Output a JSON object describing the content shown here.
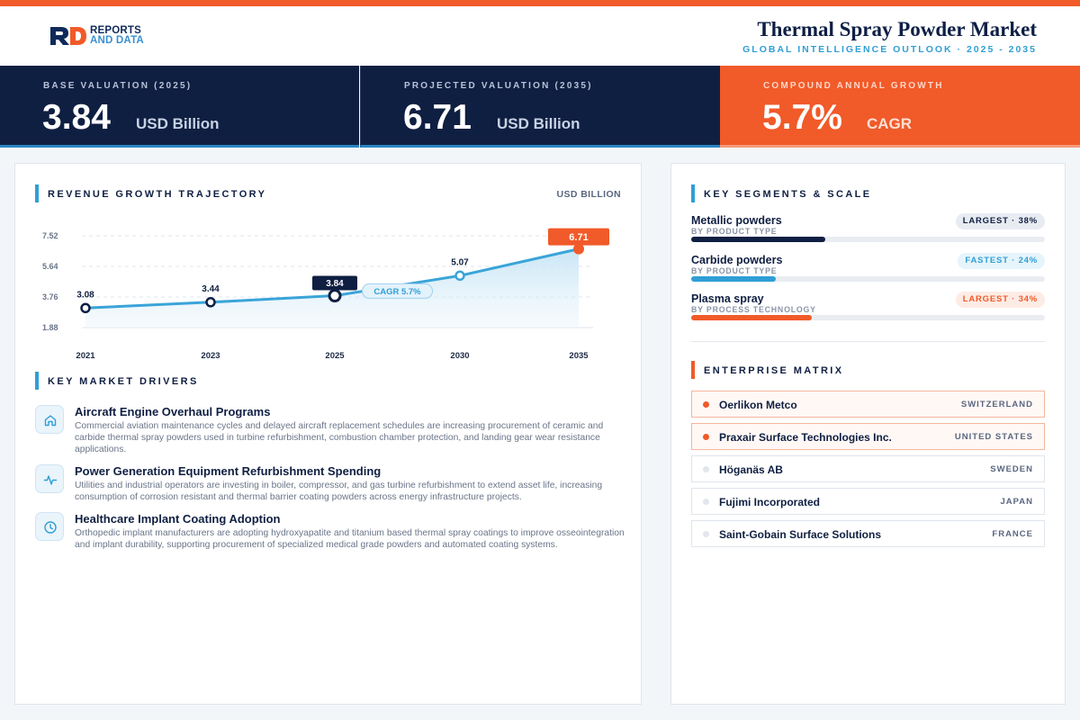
{
  "brand": {
    "logo_line1": "REPORTS",
    "logo_line2": "AND DATA",
    "accent": "#f15a29",
    "navy": "#0f1f42",
    "blue": "#2f9fd6"
  },
  "header": {
    "title": "Thermal Spray Powder Market",
    "subtitle": "GLOBAL INTELLIGENCE OUTLOOK · 2025 - 2035"
  },
  "kpis": [
    {
      "label": "BASE VALUATION (2025)",
      "value": "3.84",
      "unit": "USD Billion"
    },
    {
      "label": "PROJECTED VALUATION (2035)",
      "value": "6.71",
      "unit": "USD Billion"
    },
    {
      "label": "COMPOUND ANNUAL GROWTH",
      "value": "5.7%",
      "unit": "CAGR"
    }
  ],
  "revenue": {
    "title": "REVENUE GROWTH TRAJECTORY",
    "unit_label": "USD BILLION"
  },
  "chart_data": {
    "type": "line",
    "x": [
      "2021",
      "2023",
      "2025",
      "2030",
      "2035"
    ],
    "values": [
      3.08,
      3.44,
      3.84,
      5.07,
      6.71
    ],
    "labels": [
      "3.08",
      "3.44",
      "3.84",
      "5.07",
      "6.71"
    ],
    "y_ticks": [
      "7.52",
      "5.64",
      "3.76",
      "1.88"
    ],
    "y_tick_values": [
      7.52,
      5.64,
      3.76,
      1.88
    ],
    "ylim": [
      1.88,
      7.52
    ],
    "annotation": "CAGR 5.7%",
    "highlight_base_index": 2,
    "highlight_end_index": 4,
    "grid": true,
    "area_fill": true
  },
  "drivers": {
    "title": "KEY MARKET DRIVERS",
    "items": [
      {
        "icon": "home-icon",
        "title": "Aircraft Engine Overhaul Programs",
        "desc": "Commercial aviation maintenance cycles and delayed aircraft replacement schedules are increasing procurement of ceramic and carbide thermal spray powders used in turbine refurbishment, combustion chamber protection, and landing gear wear resistance applications."
      },
      {
        "icon": "activity-icon",
        "title": "Power Generation Equipment Refurbishment Spending",
        "desc": "Utilities and industrial operators are investing in boiler, compressor, and gas turbine refurbishment to extend asset life, increasing consumption of corrosion resistant and thermal barrier coating powders across energy infrastructure projects."
      },
      {
        "icon": "clock-icon",
        "title": "Healthcare Implant Coating Adoption",
        "desc": "Orthopedic implant manufacturers are adopting hydroxyapatite and titanium based thermal spray coatings to improve osseointegration and implant durability, supporting procurement of specialized medical grade powders and automated coating systems."
      }
    ]
  },
  "segments": {
    "title": "KEY SEGMENTS & SCALE",
    "items": [
      {
        "name": "Metallic powders",
        "category": "BY PRODUCT TYPE",
        "badge": "LARGEST · 38%",
        "share": 0.38,
        "color": "#0f1f42",
        "badge_bg": "#e8ecf2",
        "badge_fg": "#0f1f42"
      },
      {
        "name": "Carbide powders",
        "category": "BY PRODUCT TYPE",
        "badge": "FASTEST · 24%",
        "share": 0.24,
        "color": "#2f9fd6",
        "badge_bg": "#e6f4fb",
        "badge_fg": "#2f9fd6"
      },
      {
        "name": "Plasma spray",
        "category": "BY PROCESS TECHNOLOGY",
        "badge": "LARGEST · 34%",
        "share": 0.34,
        "color": "#f15a29",
        "badge_bg": "#fdece5",
        "badge_fg": "#f15a29"
      }
    ]
  },
  "enterprise": {
    "title": "ENTERPRISE MATRIX",
    "items": [
      {
        "name": "Oerlikon Metco",
        "country": "SWITZERLAND",
        "highlight": true
      },
      {
        "name": "Praxair Surface Technologies Inc.",
        "country": "UNITED STATES",
        "highlight": true
      },
      {
        "name": "Höganäs AB",
        "country": "SWEDEN",
        "highlight": false
      },
      {
        "name": "Fujimi Incorporated",
        "country": "JAPAN",
        "highlight": false
      },
      {
        "name": "Saint-Gobain Surface Solutions",
        "country": "FRANCE",
        "highlight": false
      }
    ]
  }
}
